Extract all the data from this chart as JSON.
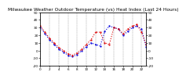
{
  "title": "Milwaukee Weather Outdoor Temperature (vs) Heat Index (Last 24 Hours)",
  "title_fontsize": 4.2,
  "ylim": [
    -20,
    50
  ],
  "xlim": [
    0,
    23
  ],
  "yticks": [
    -20,
    -10,
    0,
    10,
    20,
    30,
    40,
    50
  ],
  "ytick_labels": [
    "-20",
    "-10",
    "0",
    "10",
    "20",
    "30",
    "40",
    "50"
  ],
  "ytick_fontsize": 3.2,
  "xtick_fontsize": 3.0,
  "bg_color": "#ffffff",
  "grid_color": "#888888",
  "hours": [
    0,
    1,
    2,
    3,
    4,
    5,
    6,
    7,
    8,
    9,
    10,
    11,
    12,
    13,
    14,
    15,
    16,
    17,
    18,
    19,
    20,
    21,
    22,
    23
  ],
  "temp": [
    30,
    22,
    14,
    8,
    2,
    -2,
    -6,
    -8,
    -5,
    0,
    5,
    10,
    8,
    6,
    25,
    32,
    30,
    28,
    20,
    25,
    30,
    32,
    28,
    5
  ],
  "heat_index": [
    32,
    24,
    16,
    10,
    4,
    0,
    -4,
    -6,
    -3,
    2,
    8,
    14,
    24,
    24,
    10,
    8,
    30,
    28,
    22,
    28,
    32,
    34,
    24,
    8
  ],
  "temp_color": "#0000dd",
  "heat_color": "#dd0000",
  "line_width": 0.8,
  "marker": ".",
  "marker_size": 1.2,
  "xtick_step": 2
}
